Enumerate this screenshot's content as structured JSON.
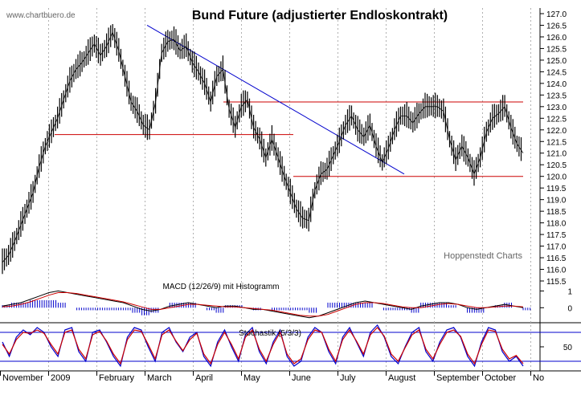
{
  "watermark": "www.chartbuero.de",
  "credit": "Hoppenstedt Charts",
  "chart_data": [
    {
      "type": "line",
      "title": "Bund Future (adjustierter Endloskontrakt)",
      "x_ticks": [
        "November",
        "2009",
        "February",
        "March",
        "April",
        "May",
        "June",
        "July",
        "August",
        "September",
        "October",
        "No"
      ],
      "y_ticks": [
        "127.0",
        "126.5",
        "126.0",
        "125.5",
        "125.0",
        "124.5",
        "124.0",
        "123.5",
        "123.0",
        "122.5",
        "122.0",
        "121.5",
        "121.0",
        "120.5",
        "120.0",
        "119.5",
        "119.0",
        "118.5",
        "118.0",
        "117.5",
        "117.0",
        "116.5",
        "116.0",
        "115.5"
      ],
      "ylim": [
        115.5,
        127.0
      ],
      "series": [
        {
          "values": [
            116.3,
            116.6,
            117.2,
            117.9,
            118.6,
            119.3,
            120.4,
            121.3,
            121.9,
            122.5,
            123.3,
            124.1,
            124.6,
            124.9,
            125.3,
            125.7,
            125.2,
            125.6,
            126.2,
            125.4,
            124.3,
            123.2,
            122.8,
            122.2,
            122.0,
            123.2,
            125.3,
            125.8,
            125.9,
            125.4,
            125.6,
            124.9,
            124.5,
            124.0,
            123.2,
            124.3,
            124.6,
            122.9,
            122.1,
            123.0,
            123.3,
            122.1,
            121.6,
            120.8,
            121.6,
            120.8,
            120.0,
            119.3,
            118.6,
            118.2,
            118.1,
            119.4,
            120.1,
            120.3,
            120.9,
            121.5,
            122.2,
            122.6,
            122.0,
            121.7,
            122.2,
            121.3,
            120.6,
            121.2,
            122.0,
            122.6,
            122.6,
            122.3,
            122.7,
            123.0,
            123.0,
            123.0,
            122.8,
            121.6,
            120.7,
            121.3,
            120.8,
            120.1,
            120.8,
            121.9,
            122.5,
            122.7,
            123.0,
            122.1,
            121.4,
            121.0
          ]
        }
      ],
      "trendlines": [
        {
          "kind": "horizontal",
          "color": "#cc0000",
          "y": 121.8
        },
        {
          "kind": "horizontal",
          "color": "#cc0000",
          "y": 123.2
        },
        {
          "kind": "horizontal",
          "color": "#cc0000",
          "y": 120.0
        },
        {
          "kind": "diagonal",
          "color": "#0000cc",
          "y_start": 126.5,
          "y_end": 120.1
        }
      ]
    },
    {
      "type": "line",
      "title": "MACD (12/26/9) mit Histogramm",
      "y_ticks": [
        "1",
        "0"
      ],
      "ylim": [
        -0.8,
        1.5
      ],
      "series": [
        {
          "color": "#000000",
          "values": [
            0.1,
            0.2,
            0.3,
            0.5,
            0.7,
            0.9,
            1.0,
            0.9,
            0.8,
            0.7,
            0.6,
            0.5,
            0.4,
            0.3,
            0.1,
            -0.1,
            -0.2,
            -0.1,
            0.1,
            0.2,
            0.3,
            0.2,
            0.1,
            0.0,
            0.1,
            0.1,
            0.0,
            -0.1,
            -0.1,
            -0.2,
            -0.3,
            -0.4,
            -0.5,
            -0.6,
            -0.5,
            -0.3,
            -0.1,
            0.1,
            0.3,
            0.4,
            0.3,
            0.2,
            0.1,
            0.0,
            -0.1,
            0.1,
            0.2,
            0.3,
            0.3,
            0.2,
            0.0,
            -0.1,
            0.0,
            0.1,
            0.2,
            0.1,
            0.0
          ]
        },
        {
          "color": "#cc0000",
          "values": [
            0.05,
            0.1,
            0.2,
            0.35,
            0.55,
            0.75,
            0.9,
            0.9,
            0.85,
            0.75,
            0.65,
            0.55,
            0.45,
            0.35,
            0.2,
            0.05,
            -0.1,
            -0.1,
            0.0,
            0.1,
            0.2,
            0.2,
            0.15,
            0.1,
            0.05,
            0.05,
            0.0,
            -0.05,
            -0.1,
            -0.15,
            -0.25,
            -0.35,
            -0.45,
            -0.5,
            -0.5,
            -0.4,
            -0.2,
            0.0,
            0.2,
            0.3,
            0.3,
            0.25,
            0.15,
            0.05,
            0.0,
            0.0,
            0.1,
            0.2,
            0.25,
            0.2,
            0.1,
            0.0,
            0.0,
            0.05,
            0.1,
            0.1,
            0.05
          ]
        }
      ]
    },
    {
      "type": "line",
      "title": "Stochastik (5/3/3)",
      "y_ticks": [
        "50"
      ],
      "ylim": [
        0,
        100
      ],
      "levels": [
        80,
        20
      ],
      "series": [
        {
          "color": "#0000cc",
          "values": [
            60,
            30,
            70,
            85,
            75,
            90,
            80,
            50,
            30,
            85,
            90,
            40,
            20,
            80,
            85,
            60,
            30,
            10,
            70,
            90,
            85,
            50,
            20,
            80,
            90,
            60,
            40,
            70,
            80,
            30,
            10,
            60,
            85,
            50,
            20,
            75,
            90,
            40,
            15,
            60,
            85,
            30,
            10,
            20,
            70,
            90,
            80,
            40,
            15,
            70,
            90,
            60,
            30,
            80,
            95,
            70,
            30,
            15,
            50,
            80,
            90,
            40,
            20,
            60,
            85,
            90,
            70,
            30,
            10,
            60,
            90,
            85,
            40,
            20,
            30,
            10
          ]
        },
        {
          "color": "#cc0000",
          "values": [
            55,
            35,
            65,
            80,
            78,
            85,
            78,
            55,
            35,
            80,
            85,
            45,
            25,
            75,
            82,
            62,
            35,
            15,
            65,
            85,
            82,
            55,
            25,
            75,
            85,
            62,
            42,
            65,
            78,
            35,
            15,
            55,
            80,
            55,
            25,
            70,
            85,
            45,
            20,
            55,
            80,
            35,
            15,
            25,
            65,
            85,
            80,
            45,
            20,
            65,
            85,
            62,
            35,
            75,
            90,
            72,
            35,
            20,
            48,
            75,
            85,
            45,
            25,
            55,
            80,
            85,
            72,
            35,
            15,
            55,
            85,
            82,
            45,
            25,
            32,
            15
          ]
        }
      ]
    }
  ]
}
